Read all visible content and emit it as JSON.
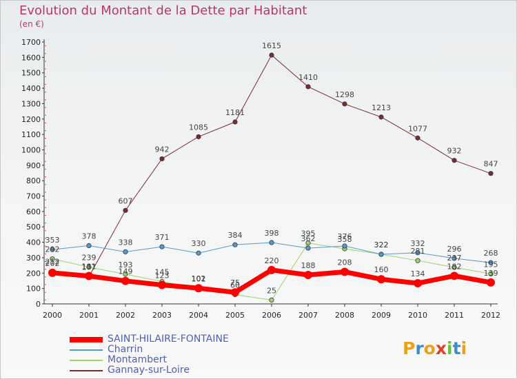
{
  "title": "Evolution du Montant de la Dette par Habitant",
  "subtitle": "(en €)",
  "logo_text": "Proxiti",
  "logo_colors": [
    "#e8a21e",
    "#3a8fc9",
    "#e8a21e",
    "#e23e2a",
    "#6cbf3a",
    "#3a8fc9",
    "#e8a21e"
  ],
  "chart_data": {
    "type": "line",
    "x": [
      "2000",
      "2001",
      "2002",
      "2003",
      "2004",
      "2005",
      "2006",
      "2007",
      "2008",
      "2009",
      "2010",
      "2011",
      "2012"
    ],
    "ylim": [
      0,
      1700
    ],
    "yticks": [
      0,
      100,
      200,
      300,
      400,
      500,
      600,
      700,
      800,
      900,
      1000,
      1100,
      1200,
      1300,
      1400,
      1500,
      1600,
      1700
    ],
    "grid": false,
    "legend_position": "bottom-left",
    "series": [
      {
        "name": "Gannay-sur-Loire",
        "color": "#7b2b2b",
        "stroke": 1,
        "values": [
          212,
          177,
          607,
          942,
          1085,
          1181,
          1615,
          1410,
          1298,
          1213,
          1077,
          932,
          847
        ],
        "labels": [
          "212",
          "177",
          "607",
          "942",
          "1085",
          "1181",
          "1615",
          "1410",
          "1298",
          "1213",
          "1077",
          "932",
          "847"
        ]
      },
      {
        "name": "Montambert",
        "color": "#9ed36a",
        "stroke": 1,
        "values": [
          292,
          239,
          193,
          145,
          101,
          60,
          25,
          395,
          358,
          322,
          281,
          237,
          195
        ],
        "labels": [
          "292",
          "239",
          "193",
          "145",
          "101",
          "60",
          "25",
          "395",
          "358",
          "322",
          "281",
          "237",
          "195"
        ]
      },
      {
        "name": "Charrin",
        "color": "#5b98c8",
        "stroke": 1,
        "values": [
          353,
          378,
          338,
          371,
          330,
          384,
          398,
          362,
          376,
          322,
          332,
          296,
          268
        ],
        "labels": [
          "353",
          "378",
          "338",
          "371",
          "330",
          "384",
          "398",
          "362",
          "376",
          "322",
          "332",
          "296",
          "268"
        ]
      },
      {
        "name": "SAINT-HILAIRE-FONTAINE",
        "color": "#ff0000",
        "stroke": 7,
        "values": [
          202,
          181,
          149,
          123,
          102,
          75,
          220,
          188,
          208,
          160,
          134,
          182,
          139
        ],
        "labels": [
          "202",
          "181",
          "149",
          "123",
          "102",
          "75",
          "220",
          "188",
          "208",
          "160",
          "134",
          "182",
          "139"
        ]
      }
    ],
    "legend": [
      {
        "name": "SAINT-HILAIRE-FONTAINE",
        "color": "#ff0000",
        "stroke": 7
      },
      {
        "name": "Charrin",
        "color": "#5b98c8",
        "stroke": 1
      },
      {
        "name": "Montambert",
        "color": "#9ed36a",
        "stroke": 1
      },
      {
        "name": "Gannay-sur-Loire",
        "color": "#7b2b2b",
        "stroke": 1
      }
    ]
  }
}
